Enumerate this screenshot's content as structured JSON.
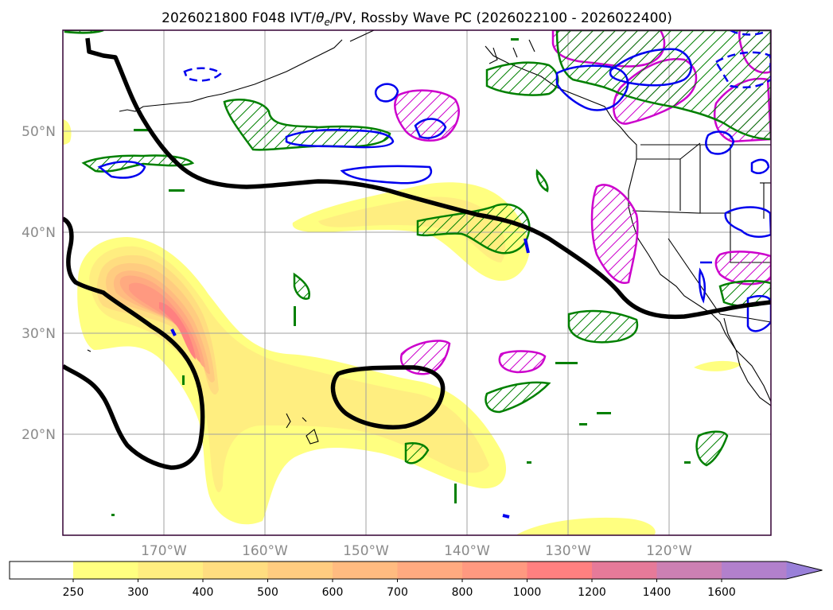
{
  "chart_data": {
    "type": "map",
    "title_parts": {
      "prefix": "2026021800 F048 IVT/",
      "theta_symbol": "θ",
      "theta_subscript": "e",
      "suffix": "/PV, Rossby Wave PC (2026022100 - 2026022400)"
    },
    "xaxis": {
      "range_deg_lon": [
        -180,
        -110
      ],
      "ticks": [
        {
          "lon": -170,
          "label": "170°W"
        },
        {
          "lon": -160,
          "label": "160°W"
        },
        {
          "lon": -150,
          "label": "150°W"
        },
        {
          "lon": -140,
          "label": "140°W"
        },
        {
          "lon": -130,
          "label": "130°W"
        },
        {
          "lon": -120,
          "label": "120°W"
        }
      ]
    },
    "yaxis": {
      "range_deg_lat": [
        10,
        60
      ],
      "ticks": [
        {
          "lat": 20,
          "label": "20°N"
        },
        {
          "lat": 30,
          "label": "30°N"
        },
        {
          "lat": 40,
          "label": "40°N"
        },
        {
          "lat": 50,
          "label": "50°N"
        }
      ]
    },
    "grid": true,
    "colorbar": {
      "orientation": "horizontal",
      "extend": "max",
      "units": "IVT",
      "levels": [
        {
          "label": "250",
          "color": "#ffff80"
        },
        {
          "label": "300",
          "color": "#ffee80"
        },
        {
          "label": "400",
          "color": "#ffdd80"
        },
        {
          "label": "500",
          "color": "#ffcc80"
        },
        {
          "label": "600",
          "color": "#ffbb80"
        },
        {
          "label": "700",
          "color": "#ffaa80"
        },
        {
          "label": "800",
          "color": "#ff9980"
        },
        {
          "label": "1000",
          "color": "#ff8080"
        },
        {
          "label": "1200",
          "color": "#e67a99"
        },
        {
          "label": "1400",
          "color": "#cc80b3"
        },
        {
          "label": "1600",
          "color": "#b280cc"
        },
        {
          "label": "",
          "color": "#9980d9"
        }
      ],
      "below_min_color": "#ffffff"
    },
    "overlays": [
      {
        "name": "pv-contour",
        "description": "black thick line",
        "color": "#000000"
      },
      {
        "name": "rossby-wave-positive",
        "description": "magenta hatched",
        "color": "#cc00cc"
      },
      {
        "name": "rossby-wave-negative",
        "description": "blue contour",
        "color": "#0000ee"
      },
      {
        "name": "theta-e-hatched",
        "description": "green hatched",
        "color": "#008000"
      }
    ]
  }
}
